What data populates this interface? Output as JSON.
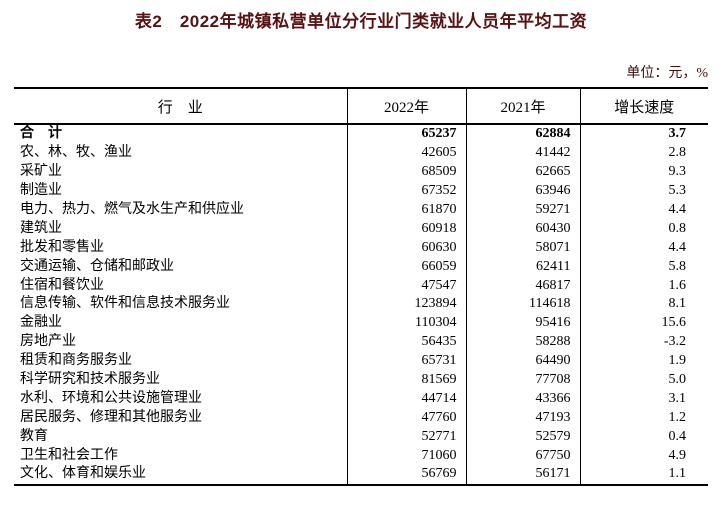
{
  "title": "表2　2022年城镇私营单位分行业门类就业人员年平均工资",
  "unit_label": "单位：元，%",
  "colors": {
    "title_text": "#5a1111",
    "unit_text": "#3f0e0e",
    "table_border": "#000000",
    "body_text": "#000000"
  },
  "table": {
    "headers": [
      "行　业",
      "2022年",
      "2021年",
      "增长速度"
    ],
    "rows": [
      {
        "industry": "合　计",
        "y2022": "65237",
        "y2021": "62884",
        "growth": "3.7",
        "bold": true
      },
      {
        "industry": "农、林、牧、渔业",
        "y2022": "42605",
        "y2021": "41442",
        "growth": "2.8"
      },
      {
        "industry": "采矿业",
        "y2022": "68509",
        "y2021": "62665",
        "growth": "9.3"
      },
      {
        "industry": "制造业",
        "y2022": "67352",
        "y2021": "63946",
        "growth": "5.3"
      },
      {
        "industry": "电力、热力、燃气及水生产和供应业",
        "y2022": "61870",
        "y2021": "59271",
        "growth": "4.4"
      },
      {
        "industry": "建筑业",
        "y2022": "60918",
        "y2021": "60430",
        "growth": "0.8"
      },
      {
        "industry": "批发和零售业",
        "y2022": "60630",
        "y2021": "58071",
        "growth": "4.4"
      },
      {
        "industry": "交通运输、仓储和邮政业",
        "y2022": "66059",
        "y2021": "62411",
        "growth": "5.8"
      },
      {
        "industry": "住宿和餐饮业",
        "y2022": "47547",
        "y2021": "46817",
        "growth": "1.6"
      },
      {
        "industry": "信息传输、软件和信息技术服务业",
        "y2022": "123894",
        "y2021": "114618",
        "growth": "8.1"
      },
      {
        "industry": "金融业",
        "y2022": "110304",
        "y2021": "95416",
        "growth": "15.6"
      },
      {
        "industry": "房地产业",
        "y2022": "56435",
        "y2021": "58288",
        "growth": "-3.2"
      },
      {
        "industry": "租赁和商务服务业",
        "y2022": "65731",
        "y2021": "64490",
        "growth": "1.9"
      },
      {
        "industry": "科学研究和技术服务业",
        "y2022": "81569",
        "y2021": "77708",
        "growth": "5.0"
      },
      {
        "industry": "水利、环境和公共设施管理业",
        "y2022": "44714",
        "y2021": "43366",
        "growth": "3.1"
      },
      {
        "industry": "居民服务、修理和其他服务业",
        "y2022": "47760",
        "y2021": "47193",
        "growth": "1.2"
      },
      {
        "industry": "教育",
        "y2022": "52771",
        "y2021": "52579",
        "growth": "0.4"
      },
      {
        "industry": "卫生和社会工作",
        "y2022": "71060",
        "y2021": "67750",
        "growth": "4.9"
      },
      {
        "industry": "文化、体育和娱乐业",
        "y2022": "56769",
        "y2021": "56171",
        "growth": "1.1"
      }
    ]
  }
}
